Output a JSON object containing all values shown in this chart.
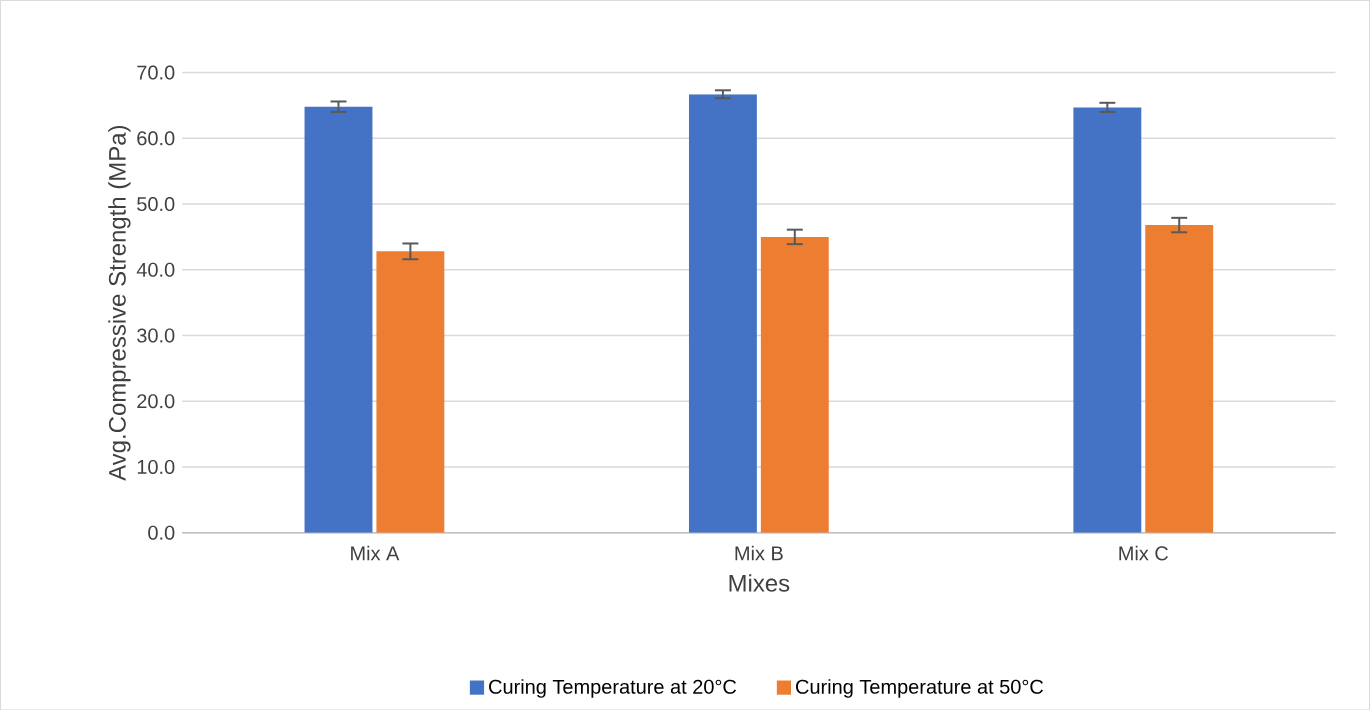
{
  "chart_data": {
    "type": "bar",
    "xlabel": "Mixes",
    "ylabel": "Avg.Compressive Strength (MPa)",
    "categories": [
      "Mix A",
      "Mix B",
      "Mix C"
    ],
    "series": [
      {
        "name": "Curing Temperature at 20°C",
        "color": "#4472c4",
        "values": [
          64.8,
          66.7,
          64.7
        ],
        "errors": [
          0.8,
          0.6,
          0.7
        ]
      },
      {
        "name": "Curing Temperature  at 50°C",
        "color": "#ed7d31",
        "values": [
          42.8,
          45.0,
          46.8
        ],
        "errors": [
          1.2,
          1.1,
          1.1
        ]
      }
    ],
    "ylim": [
      0,
      70
    ],
    "yticks": [
      {
        "value": 0,
        "label": "0.0"
      },
      {
        "value": 10,
        "label": "10.0"
      },
      {
        "value": 20,
        "label": "20.0"
      },
      {
        "value": 30,
        "label": "30.0"
      },
      {
        "value": 40,
        "label": "40.0"
      },
      {
        "value": 50,
        "label": "50.0"
      },
      {
        "value": 60,
        "label": "60.0"
      },
      {
        "value": 70,
        "label": "70.0"
      }
    ],
    "grid": "y",
    "legend": "bottom"
  }
}
